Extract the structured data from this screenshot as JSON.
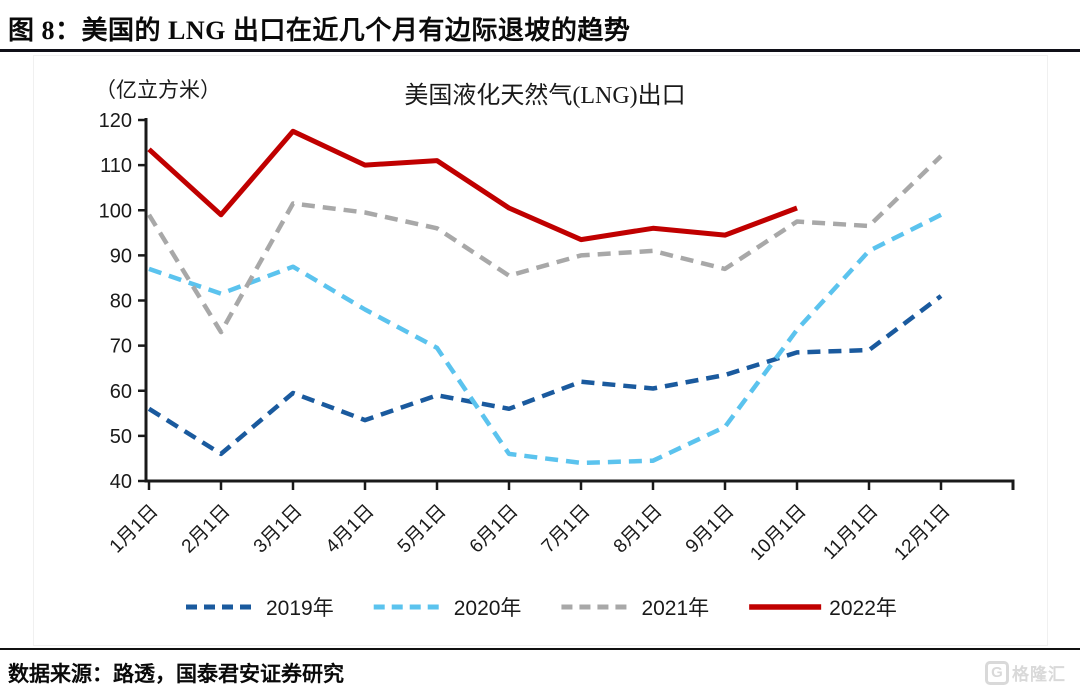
{
  "header": {
    "figure_title": "图 8：美国的 LNG 出口在近几个月有边际退坡的趋势"
  },
  "footer": {
    "source": "数据来源：路透，国泰君安证券研究",
    "logo": "格隆汇",
    "logo_letter": "G"
  },
  "chart_data": {
    "type": "line",
    "title": "美国液化天然气(LNG)出口",
    "unit_label": "（亿立方米）",
    "categories": [
      "1月1日",
      "2月1日",
      "3月1日",
      "4月1日",
      "5月1日",
      "6月1日",
      "7月1日",
      "8月1日",
      "9月1日",
      "10月1日",
      "11月1日",
      "12月1日"
    ],
    "ylim": [
      40,
      120
    ],
    "ytick_step": 10,
    "grid": false,
    "legend_position": "bottom",
    "series": [
      {
        "name": "2019年",
        "color": "#1a5a9e",
        "line_style": "dashed",
        "values": [
          56,
          46,
          59.5,
          53.5,
          59,
          56,
          62,
          60.5,
          63.5,
          68.5,
          69,
          81
        ]
      },
      {
        "name": "2020年",
        "color": "#5bc3ee",
        "line_style": "dashed",
        "values": [
          87,
          81.5,
          87.5,
          78,
          69.5,
          46,
          44,
          44.5,
          52,
          73.5,
          91,
          99
        ]
      },
      {
        "name": "2021年",
        "color": "#a8a8a8",
        "line_style": "dashed",
        "values": [
          99,
          73,
          101.5,
          99.5,
          96,
          85.5,
          90,
          91,
          87,
          97.5,
          96.5,
          112
        ]
      },
      {
        "name": "2022年",
        "color": "#c00000",
        "line_style": "solid",
        "values": [
          113.5,
          99,
          117.5,
          110,
          111,
          100.5,
          93.5,
          96,
          94.5,
          100.5
        ]
      }
    ]
  }
}
